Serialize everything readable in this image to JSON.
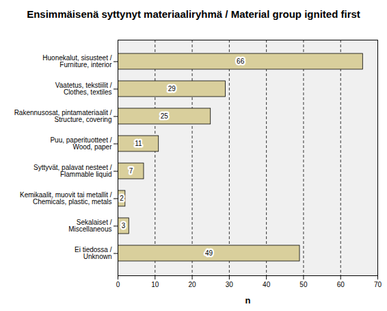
{
  "chart_data": {
    "type": "bar",
    "title": "Ensimmäisenä syttynyt materiaaliryhmä / Material group ignited first",
    "orientation": "horizontal",
    "categories": [
      "Huonekalut, sisusteet /\nFurniture, interior",
      "Vaatetus, tekstiilit /\nClothes, textiles",
      "Rakennusosat, pintamateriaalit /\nStructure, covering",
      "Puu, paperituotteet /\nWood, paper",
      "Syttyvät, palavat nesteet /\nFlammable liquid",
      "Kemikaalit, muovit tai metallit /\nChemicals, plastic, metals",
      "Sekalaiset /\nMiscellaneous",
      "Ei tiedossa /\nUnknown"
    ],
    "values": [
      66,
      29,
      25,
      11,
      7,
      2,
      3,
      49
    ],
    "color": "#d9cf9c",
    "xlabel": "n",
    "xlim": [
      0,
      70
    ],
    "xticks": [
      0,
      10,
      20,
      30,
      40,
      50,
      60,
      70
    ],
    "grid": true,
    "data_labels": true
  }
}
